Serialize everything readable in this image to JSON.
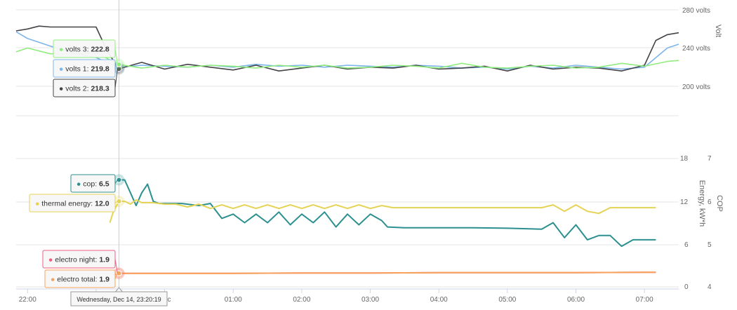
{
  "chart_data": [
    {
      "type": "line",
      "panel": "voltage",
      "ylabel": "Volt",
      "y_ticks": [
        "280 volts",
        "240 volts",
        "200 volts"
      ],
      "ylim": [
        200,
        280
      ],
      "x_ticks": [
        "22:00",
        "Dec",
        "01:00",
        "02:00",
        "03:00",
        "04:00",
        "05:00",
        "06:00",
        "07:00"
      ],
      "x_range": [
        "21:50",
        "07:30"
      ],
      "series": [
        {
          "name": "volts 1",
          "color": "#7cb5ec",
          "x": [
            "21:50",
            "22:00",
            "22:20",
            "22:40",
            "23:00",
            "23:20",
            "23:40",
            "00:00",
            "00:20",
            "00:40",
            "01:00",
            "01:20",
            "01:40",
            "02:00",
            "02:20",
            "02:40",
            "03:00",
            "03:20",
            "03:40",
            "04:00",
            "04:20",
            "04:40",
            "05:00",
            "05:20",
            "05:40",
            "06:00",
            "06:20",
            "06:40",
            "07:00",
            "07:20",
            "07:30"
          ],
          "y": [
            257,
            250,
            242,
            235,
            230,
            219.8,
            222,
            221,
            220,
            222,
            220,
            223,
            221,
            222,
            220,
            222,
            221,
            220,
            222,
            221,
            219,
            220,
            218,
            221,
            219,
            222,
            220,
            218,
            220,
            240,
            244
          ]
        },
        {
          "name": "volts 2",
          "color": "#434348",
          "x": [
            "21:50",
            "22:00",
            "22:10",
            "22:20",
            "22:40",
            "23:00",
            "23:10",
            "23:20",
            "23:40",
            "00:00",
            "00:20",
            "00:40",
            "01:00",
            "01:20",
            "01:40",
            "02:00",
            "02:20",
            "02:40",
            "03:00",
            "03:20",
            "03:40",
            "04:00",
            "04:20",
            "04:40",
            "05:00",
            "05:20",
            "05:40",
            "06:00",
            "06:20",
            "06:40",
            "07:00",
            "07:10",
            "07:20",
            "07:30"
          ],
          "y": [
            258,
            260,
            263,
            262,
            262,
            262,
            236,
            218.3,
            225,
            218,
            223,
            220,
            217,
            222,
            216,
            219,
            222,
            218,
            220,
            219,
            222,
            218,
            219,
            221,
            216,
            222,
            218,
            220,
            219,
            216,
            222,
            248,
            254,
            256
          ]
        },
        {
          "name": "volts 3",
          "color": "#90ed7d",
          "x": [
            "21:50",
            "22:00",
            "22:20",
            "22:40",
            "23:00",
            "23:20",
            "23:40",
            "00:00",
            "00:20",
            "00:40",
            "01:00",
            "01:20",
            "01:40",
            "02:00",
            "02:20",
            "02:40",
            "03:00",
            "03:20",
            "03:40",
            "04:00",
            "04:20",
            "04:40",
            "05:00",
            "05:20",
            "05:40",
            "06:00",
            "06:20",
            "06:40",
            "07:00",
            "07:20",
            "07:30"
          ],
          "y": [
            236,
            240,
            234,
            234,
            235,
            222.8,
            219,
            222,
            220,
            222,
            221,
            219,
            222,
            220,
            222,
            219,
            220,
            222,
            221,
            219,
            224,
            220,
            219,
            221,
            222,
            219,
            220,
            224,
            221,
            226,
            227
          ]
        }
      ],
      "tooltips": [
        {
          "series": "volts 3",
          "label": "volts 3",
          "value": "222.8"
        },
        {
          "series": "volts 1",
          "label": "volts 1",
          "value": "219.8"
        },
        {
          "series": "volts 2",
          "label": "volts 2",
          "value": "218.3"
        }
      ]
    },
    {
      "type": "line",
      "panel": "energy",
      "ylabel": "Energy, kW*h",
      "y_ticks": [
        "18",
        "12",
        "6",
        "0"
      ],
      "ylim": [
        0,
        18
      ],
      "y2label": "COP",
      "y2_ticks": [
        "7",
        "6",
        "5",
        "4"
      ],
      "y2lim": [
        4,
        7
      ],
      "x_ticks": [
        "22:00",
        "Dec",
        "01:00",
        "02:00",
        "03:00",
        "04:00",
        "05:00",
        "06:00",
        "07:00"
      ],
      "x_range": [
        "21:50",
        "07:30"
      ],
      "series": [
        {
          "name": "cop",
          "color": "#2b908f",
          "axis": "right",
          "x": [
            "23:20",
            "23:25",
            "23:30",
            "23:35",
            "23:40",
            "23:45",
            "23:50",
            "23:55",
            "00:00",
            "00:15",
            "00:30",
            "00:40",
            "00:50",
            "01:00",
            "01:10",
            "01:20",
            "01:30",
            "01:40",
            "01:50",
            "02:00",
            "02:10",
            "02:20",
            "02:30",
            "02:40",
            "02:50",
            "03:00",
            "03:10",
            "03:15",
            "03:30",
            "04:00",
            "04:30",
            "05:00",
            "05:30",
            "05:40",
            "05:50",
            "06:00",
            "06:10",
            "06:20",
            "06:30",
            "06:40",
            "06:50",
            "07:00",
            "07:10"
          ],
          "y": [
            6.5,
            6.5,
            6.2,
            5.9,
            6.2,
            6.4,
            6.0,
            5.95,
            5.95,
            5.95,
            5.9,
            5.95,
            5.6,
            5.7,
            5.5,
            5.7,
            5.5,
            5.75,
            5.45,
            5.7,
            5.5,
            5.75,
            5.4,
            5.7,
            5.45,
            5.7,
            5.55,
            5.4,
            5.38,
            5.38,
            5.38,
            5.37,
            5.35,
            5.5,
            5.15,
            5.45,
            5.1,
            5.2,
            5.2,
            4.95,
            5.1,
            5.1,
            5.1
          ]
        },
        {
          "name": "thermal energy",
          "color": "#e4d354",
          "axis": "left",
          "x": [
            "23:12",
            "23:15",
            "23:20",
            "23:25",
            "23:30",
            "23:35",
            "23:40",
            "23:50",
            "00:00",
            "00:10",
            "00:20",
            "00:30",
            "00:40",
            "00:50",
            "01:00",
            "01:10",
            "01:20",
            "01:30",
            "01:40",
            "01:50",
            "02:00",
            "02:10",
            "02:20",
            "02:30",
            "02:40",
            "02:50",
            "03:00",
            "03:10",
            "03:20",
            "03:30",
            "04:00",
            "04:30",
            "05:00",
            "05:30",
            "05:40",
            "05:50",
            "06:00",
            "06:10",
            "06:20",
            "06:30",
            "07:00",
            "07:10"
          ],
          "y": [
            9.0,
            10.5,
            12.0,
            12.0,
            11.6,
            12.2,
            11.8,
            11.8,
            11.6,
            11.6,
            11.2,
            11.6,
            11.0,
            11.5,
            11.0,
            11.5,
            11.0,
            11.5,
            11.0,
            11.5,
            11.0,
            11.5,
            11.0,
            11.5,
            11.0,
            11.5,
            11.0,
            11.4,
            11.1,
            11.1,
            11.1,
            11.1,
            11.1,
            11.1,
            11.5,
            10.6,
            11.5,
            10.6,
            10.3,
            11.1,
            11.1,
            11.1
          ]
        },
        {
          "name": "electro night",
          "color": "#f15c80",
          "axis": "left",
          "x": [
            "23:15",
            "23:20",
            "23:30",
            "00:00",
            "01:00",
            "02:00",
            "03:00",
            "04:00",
            "05:00",
            "06:00",
            "07:00",
            "07:10"
          ],
          "y": [
            1.7,
            1.9,
            1.9,
            1.9,
            1.9,
            1.95,
            1.95,
            2.0,
            2.0,
            2.0,
            2.05,
            2.05
          ]
        },
        {
          "name": "electro total",
          "color": "#f7a35c",
          "axis": "left",
          "x": [
            "23:15",
            "23:20",
            "23:30",
            "00:00",
            "01:00",
            "02:00",
            "03:00",
            "04:00",
            "05:00",
            "06:00",
            "07:00",
            "07:10"
          ],
          "y": [
            1.7,
            1.9,
            1.9,
            1.9,
            1.9,
            1.95,
            1.95,
            2.0,
            2.0,
            2.0,
            2.05,
            2.05
          ]
        }
      ],
      "tooltips": [
        {
          "series": "cop",
          "label": "cop",
          "value": "6.5"
        },
        {
          "series": "thermal energy",
          "label": "thermal energy",
          "value": "12.0"
        },
        {
          "series": "electro night",
          "label": "electro night",
          "value": "1.9"
        },
        {
          "series": "electro total",
          "label": "electro total",
          "value": "1.9"
        }
      ]
    }
  ],
  "crosshair": {
    "time": "23:20",
    "label": "Wednesday, Dec 14, 23:20:19"
  }
}
